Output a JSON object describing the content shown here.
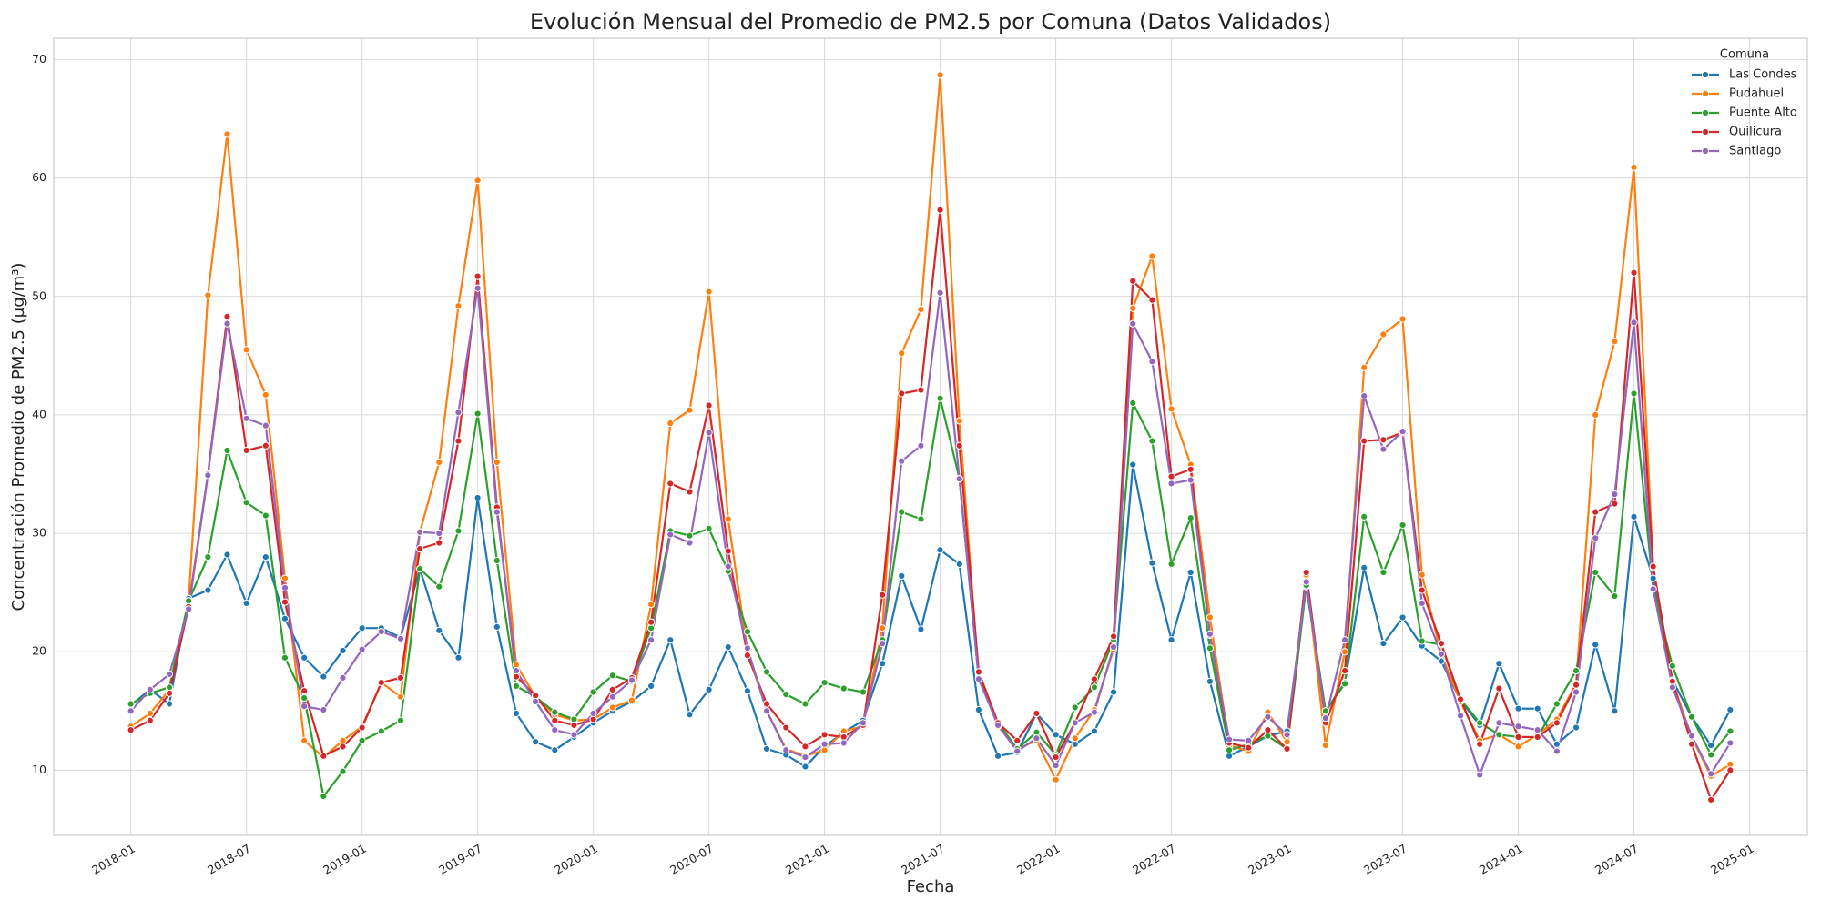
{
  "chart_data": {
    "type": "line",
    "title": "Evolución Mensual del Promedio de PM2.5 por Comuna (Datos Validados)",
    "xlabel": "Fecha",
    "ylabel": "Concentración Promedio de PM2.5 (µg/m³)",
    "legend_title": "Comuna",
    "legend": "upper right",
    "grid": true,
    "x": [
      "2018-01",
      "2018-02",
      "2018-03",
      "2018-04",
      "2018-05",
      "2018-06",
      "2018-07",
      "2018-08",
      "2018-09",
      "2018-10",
      "2018-11",
      "2018-12",
      "2019-01",
      "2019-02",
      "2019-03",
      "2019-04",
      "2019-05",
      "2019-06",
      "2019-07",
      "2019-08",
      "2019-09",
      "2019-10",
      "2019-11",
      "2019-12",
      "2020-01",
      "2020-02",
      "2020-03",
      "2020-04",
      "2020-05",
      "2020-06",
      "2020-07",
      "2020-08",
      "2020-09",
      "2020-10",
      "2020-11",
      "2020-12",
      "2021-01",
      "2021-02",
      "2021-03",
      "2021-04",
      "2021-05",
      "2021-06",
      "2021-07",
      "2021-08",
      "2021-09",
      "2021-10",
      "2021-11",
      "2021-12",
      "2022-01",
      "2022-02",
      "2022-03",
      "2022-04",
      "2022-05",
      "2022-06",
      "2022-07",
      "2022-08",
      "2022-09",
      "2022-10",
      "2022-11",
      "2022-12",
      "2023-01",
      "2023-02",
      "2023-03",
      "2023-04",
      "2023-05",
      "2023-06",
      "2023-07",
      "2023-08",
      "2023-09",
      "2023-10",
      "2023-11",
      "2023-12",
      "2024-01",
      "2024-02",
      "2024-03",
      "2024-04",
      "2024-05",
      "2024-06",
      "2024-07",
      "2024-08",
      "2024-09",
      "2024-10",
      "2024-11",
      "2024-12"
    ],
    "xlim": [
      "2017-09",
      "2025-04"
    ],
    "xticks": [
      "2018-01",
      "2018-07",
      "2019-01",
      "2019-07",
      "2020-01",
      "2020-07",
      "2021-01",
      "2021-07",
      "2022-01",
      "2022-07",
      "2023-01",
      "2023-07",
      "2024-01",
      "2024-07",
      "2025-01"
    ],
    "ylim": [
      4.5,
      71.8
    ],
    "yticks": [
      10,
      20,
      30,
      40,
      50,
      60,
      70
    ],
    "series": [
      {
        "name": "Las Condes",
        "color": "#1f77b4",
        "values": [
          15.5,
          16.8,
          15.6,
          24.5,
          25.2,
          28.2,
          24.1,
          28.0,
          22.8,
          19.5,
          17.9,
          20.1,
          22.0,
          22.0,
          21.2,
          27.0,
          21.8,
          19.5,
          33.0,
          22.1,
          14.8,
          12.4,
          11.7,
          12.8,
          14.0,
          15.0,
          15.8,
          17.1,
          21.0,
          14.7,
          16.8,
          20.4,
          16.7,
          11.8,
          11.3,
          10.3,
          12.0,
          13.2,
          14.2,
          19.0,
          26.4,
          21.9,
          28.6,
          27.4,
          15.1,
          11.2,
          11.5,
          14.8,
          13.0,
          12.2,
          13.3,
          16.6,
          35.8,
          27.5,
          21.0,
          26.7,
          17.5,
          11.2,
          12.0,
          12.9,
          13.3,
          25.5,
          15.0,
          17.4,
          27.1,
          20.7,
          22.9,
          20.5,
          19.2,
          15.9,
          13.8,
          19.0,
          15.2,
          15.2,
          12.2,
          13.6,
          20.6,
          15.0,
          31.4,
          26.2,
          17.6,
          14.5,
          12.1,
          15.1
        ]
      },
      {
        "name": "Pudahuel",
        "color": "#ff7f0e",
        "values": [
          13.7,
          14.8,
          16.8,
          24.3,
          50.1,
          63.7,
          45.5,
          41.7,
          26.2,
          12.5,
          11.1,
          12.5,
          13.7,
          17.4,
          16.2,
          30.1,
          36.0,
          49.2,
          59.8,
          36.0,
          18.9,
          16.2,
          14.7,
          14.2,
          14.3,
          15.3,
          15.9,
          24.0,
          39.3,
          40.4,
          50.4,
          31.2,
          20.1,
          15.0,
          11.8,
          11.2,
          11.7,
          13.3,
          13.7,
          22.0,
          45.2,
          48.9,
          68.7,
          39.5,
          17.9,
          13.7,
          11.8,
          12.5,
          9.2,
          12.7,
          15.1,
          20.2,
          49.0,
          53.4,
          40.5,
          35.8,
          22.9,
          12.1,
          11.6,
          14.9,
          12.4,
          26.5,
          12.1,
          20.0,
          44.0,
          46.8,
          48.1,
          26.5,
          19.8,
          15.8,
          12.5,
          13.0,
          12.0,
          13.0,
          14.3,
          17.3,
          40.0,
          46.2,
          60.9,
          27.1,
          17.5,
          12.8,
          9.5,
          10.5
        ]
      },
      {
        "name": "Puente Alto",
        "color": "#2ca02c",
        "values": [
          15.6,
          16.5,
          17.0,
          24.3,
          28.0,
          37.0,
          32.6,
          31.5,
          19.5,
          16.1,
          7.8,
          9.9,
          12.5,
          13.3,
          14.2,
          27.0,
          25.5,
          30.2,
          40.1,
          27.7,
          17.1,
          16.2,
          14.9,
          14.3,
          16.6,
          18.0,
          17.5,
          22.0,
          30.2,
          29.8,
          30.4,
          26.8,
          21.7,
          18.3,
          16.4,
          15.6,
          17.4,
          16.9,
          16.6,
          21.0,
          31.8,
          31.2,
          41.4,
          34.6,
          17.8,
          14.0,
          11.8,
          13.2,
          11.3,
          15.3,
          17.0,
          21.0,
          41.0,
          37.8,
          27.4,
          31.3,
          20.3,
          11.7,
          12.2,
          12.9,
          11.8,
          25.6,
          15.0,
          17.3,
          31.4,
          26.7,
          30.7,
          20.9,
          20.6,
          16.0,
          14.0,
          13.0,
          12.8,
          12.8,
          15.6,
          18.4,
          26.7,
          24.7,
          41.8,
          25.3,
          18.8,
          14.5,
          11.3,
          13.3
        ]
      },
      {
        "name": "Quilicura",
        "color": "#d62728",
        "values": [
          13.4,
          14.2,
          16.5,
          23.8,
          35.0,
          48.3,
          37.0,
          37.4,
          24.2,
          16.7,
          11.2,
          12.0,
          13.6,
          17.4,
          17.8,
          28.7,
          29.2,
          37.8,
          51.7,
          32.2,
          17.9,
          16.3,
          14.2,
          13.8,
          14.3,
          16.8,
          17.8,
          22.5,
          34.2,
          33.5,
          40.8,
          28.5,
          19.7,
          15.6,
          13.6,
          12.0,
          13.0,
          12.8,
          13.8,
          24.8,
          41.8,
          42.1,
          57.3,
          37.4,
          18.3,
          14.0,
          12.5,
          14.8,
          11.1,
          14.0,
          17.7,
          21.3,
          51.3,
          49.7,
          34.8,
          35.4,
          21.4,
          12.3,
          11.9,
          13.4,
          11.8,
          26.7,
          14.0,
          18.4,
          37.8,
          37.9,
          38.5,
          25.2,
          20.7,
          16.0,
          12.2,
          16.9,
          12.8,
          12.8,
          14.0,
          17.2,
          31.8,
          32.5,
          52.0,
          27.2,
          17.5,
          12.2,
          7.5,
          10.0
        ]
      },
      {
        "name": "Santiago",
        "color": "#9467bd",
        "values": [
          15.0,
          16.8,
          18.1,
          23.6,
          34.9,
          47.7,
          39.7,
          39.1,
          25.4,
          15.4,
          15.1,
          17.8,
          20.2,
          21.7,
          21.1,
          30.1,
          30.0,
          40.2,
          50.7,
          31.8,
          18.4,
          15.8,
          13.4,
          13.0,
          14.8,
          16.2,
          17.6,
          21.0,
          29.9,
          29.2,
          38.5,
          27.2,
          20.3,
          15.0,
          11.7,
          11.1,
          12.2,
          12.3,
          14.0,
          20.7,
          36.1,
          37.4,
          50.3,
          34.6,
          17.7,
          13.8,
          11.6,
          12.7,
          10.4,
          14.0,
          14.9,
          20.4,
          47.7,
          44.5,
          34.2,
          34.5,
          21.5,
          12.6,
          12.5,
          14.5,
          13.0,
          25.9,
          14.4,
          21.0,
          41.6,
          37.1,
          38.6,
          24.1,
          19.8,
          14.6,
          9.6,
          14.0,
          13.7,
          13.4,
          11.6,
          16.6,
          29.6,
          33.3,
          47.8,
          25.3,
          17.0,
          12.9,
          9.7,
          12.3
        ]
      }
    ]
  }
}
